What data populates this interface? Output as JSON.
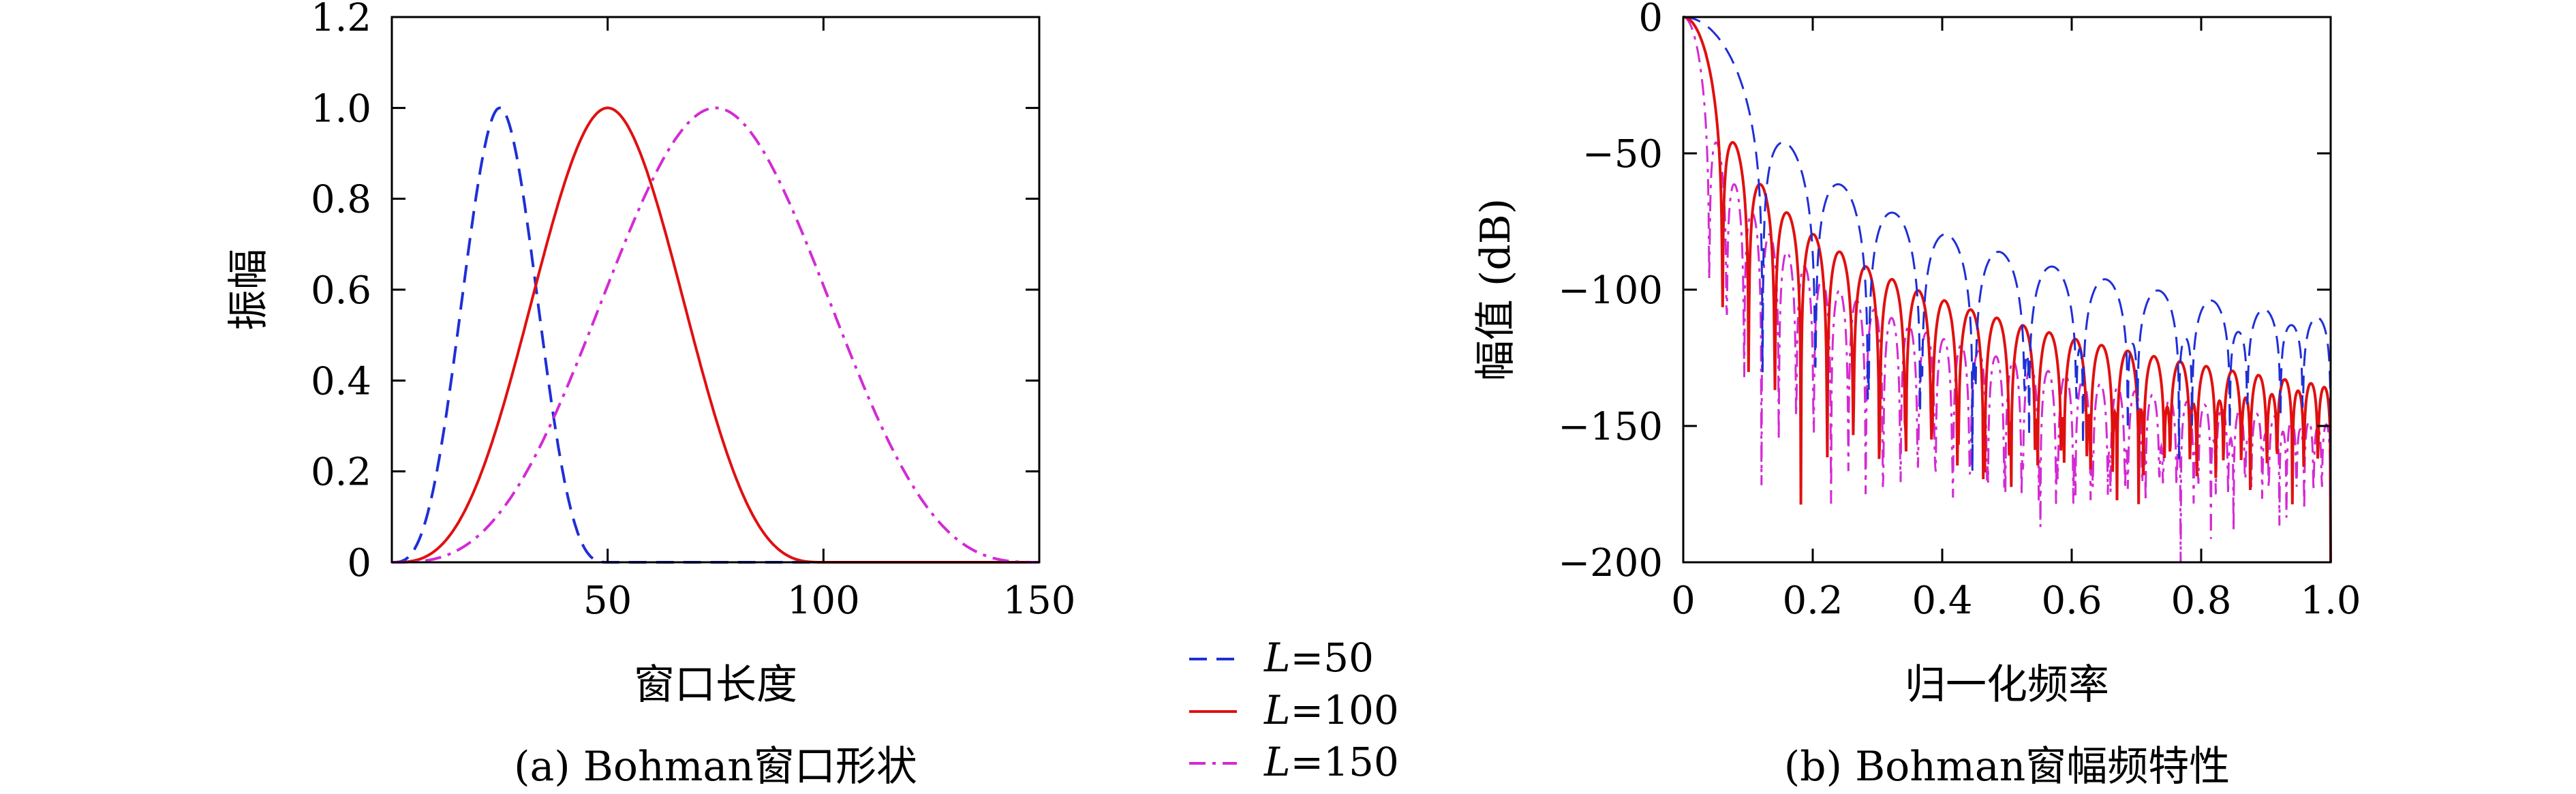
{
  "chart_data": [
    {
      "type": "line",
      "title": "",
      "caption": "(a) Bohman窗口形状",
      "xlabel": "窗口长度",
      "ylabel": "振幅",
      "xlim": [
        0,
        150
      ],
      "ylim": [
        0,
        1.2
      ],
      "xticks": [
        50,
        100,
        150
      ],
      "yticks": [
        0,
        0.2,
        0.4,
        0.6,
        0.8,
        1.0,
        1.2
      ],
      "xtick_labels": [
        "50",
        "100",
        "150"
      ],
      "ytick_labels": [
        "0",
        "0.2",
        "0.4",
        "0.6",
        "0.8",
        "1.0",
        "1.2"
      ],
      "grid": false,
      "series": [
        {
          "name": "L=50",
          "window_length": 50,
          "center": 25,
          "peak": 1.0,
          "color": "#1f2fd6",
          "style": "dashed"
        },
        {
          "name": "L=100",
          "window_length": 100,
          "center": 50,
          "peak": 1.0,
          "color": "#e01010",
          "style": "solid"
        },
        {
          "name": "L=150",
          "window_length": 150,
          "center": 75,
          "peak": 1.0,
          "color": "#d42ad4",
          "style": "dashdot"
        }
      ]
    },
    {
      "type": "line",
      "title": "",
      "caption": "(b) Bohman窗幅频特性",
      "xlabel": "归一化频率",
      "ylabel": "幅值 (dB)",
      "xlim": [
        0,
        1.0
      ],
      "ylim": [
        -200,
        0
      ],
      "xticks": [
        0,
        0.2,
        0.4,
        0.6,
        0.8,
        1.0
      ],
      "yticks": [
        0,
        -50,
        -100,
        -150,
        -200
      ],
      "xtick_labels": [
        "0",
        "0.2",
        "0.4",
        "0.6",
        "0.8",
        "1.0"
      ],
      "ytick_labels": [
        "0",
        "−50",
        "−100",
        "−150",
        "−200"
      ],
      "grid": false,
      "series": [
        {
          "name": "L=50",
          "window_length": 50,
          "color": "#1f2fd6",
          "style": "dashed"
        },
        {
          "name": "L=100",
          "window_length": 100,
          "color": "#e01010",
          "style": "solid"
        },
        {
          "name": "L=150",
          "window_length": 150,
          "color": "#d42ad4",
          "style": "dashdot"
        }
      ]
    }
  ],
  "legend": {
    "placement": "bottom-center",
    "entries": [
      {
        "var": "L",
        "value": "=50",
        "color": "#1f2fd6",
        "style": "dashed"
      },
      {
        "var": "L",
        "value": "=100",
        "color": "#e01010",
        "style": "solid"
      },
      {
        "var": "L",
        "value": "=150",
        "color": "#d42ad4",
        "style": "dashdot"
      }
    ]
  }
}
